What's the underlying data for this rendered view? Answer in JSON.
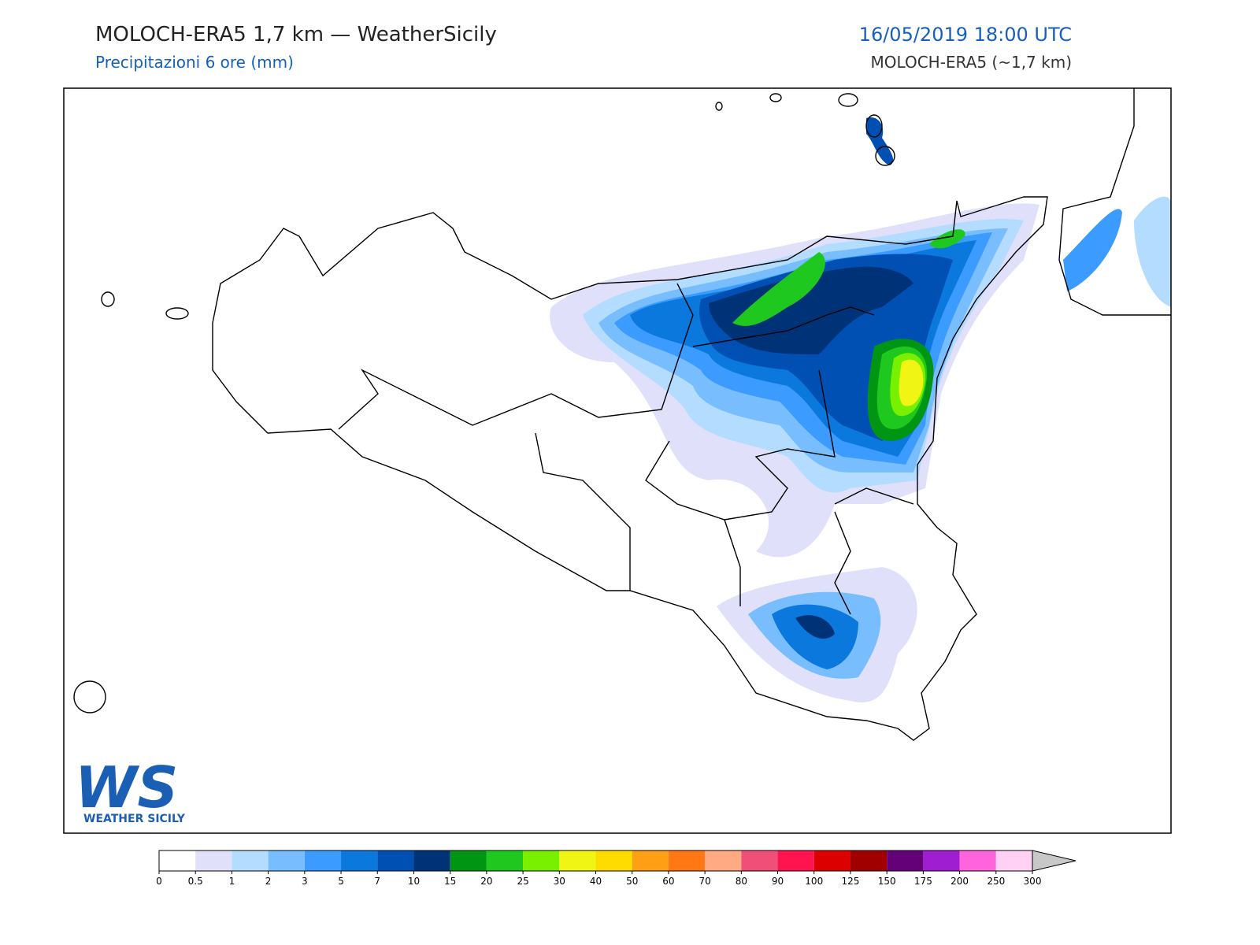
{
  "header": {
    "title": "MOLOCH-ERA5 1,7 km — WeatherSicily",
    "subtitle": "Precipitazioni 6 ore (mm)",
    "datetime": "16/05/2019 18:00 UTC",
    "model": "MOLOCH-ERA5 (~1,7 km)"
  },
  "logo": {
    "mark": "WS",
    "name": "WEATHER SICILY"
  },
  "colorbar": {
    "ticks": [
      0,
      0.5,
      1,
      2,
      3,
      5,
      7,
      10,
      15,
      20,
      25,
      30,
      40,
      50,
      60,
      70,
      80,
      90,
      100,
      125,
      150,
      175,
      200,
      250,
      300
    ],
    "colors": [
      "#ffffff",
      "#e0e0fa",
      "#b4dcff",
      "#78beff",
      "#3c9bff",
      "#0a78dc",
      "#0050b4",
      "#003278",
      "#009614",
      "#1ec81e",
      "#78f000",
      "#f0f514",
      "#ffdc00",
      "#ffa014",
      "#ff7814",
      "#ffaa82",
      "#f05078",
      "#ff1450",
      "#dc0000",
      "#a00000",
      "#640078",
      "#a01ed2",
      "#ff64dc",
      "#ffd2f5"
    ],
    "extend_color": "#c8c8c8"
  }
}
